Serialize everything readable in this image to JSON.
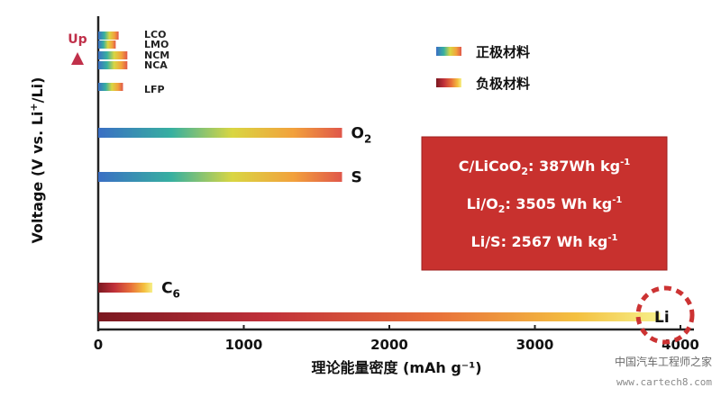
{
  "chart_data": {
    "type": "bar",
    "orientation": "horizontal",
    "xlabel": "理论能量密度 (mAh g⁻¹)",
    "ylabel_parts": [
      "Voltage (V vs. Li",
      "+",
      "/Li)"
    ],
    "up_label": "Up",
    "xlim": [
      0,
      4000
    ],
    "xticks": [
      0,
      1000,
      2000,
      3000,
      4000
    ],
    "bars": [
      {
        "label": "LCO",
        "value": 140,
        "kind": "cathode"
      },
      {
        "label": "LMO",
        "value": 120,
        "kind": "cathode"
      },
      {
        "label": "NCM",
        "value": 200,
        "kind": "cathode"
      },
      {
        "label": "NCA",
        "value": 200,
        "kind": "cathode"
      },
      {
        "label": "LFP",
        "value": 170,
        "kind": "cathode"
      },
      {
        "label": "O2",
        "label_main": "O",
        "label_sub": "2",
        "value": 1675,
        "kind": "cathode"
      },
      {
        "label": "S",
        "label_main": "S",
        "label_sub": "",
        "value": 1675,
        "kind": "cathode"
      },
      {
        "label": "C6",
        "label_main": "C",
        "label_sub": "6",
        "value": 372,
        "kind": "anode"
      },
      {
        "label": "Li",
        "label_main": "Li",
        "label_sub": "",
        "value": 3860,
        "kind": "anode"
      }
    ],
    "legend": [
      {
        "label": "正极材料",
        "kind": "cathode"
      },
      {
        "label": "负极材料",
        "kind": "anode"
      }
    ],
    "annotation_box": {
      "lines": [
        {
          "pre": "C/LiCoO",
          "sub": "2",
          "post": ": 387Wh kg",
          "sup": "-1"
        },
        {
          "pre": "Li/O",
          "sub": "2",
          "post": ": 3505 Wh kg",
          "sup": "-1"
        },
        {
          "pre": "Li/S: 2567 Wh kg",
          "sub": "",
          "post": "",
          "sup": "-1"
        }
      ]
    },
    "colors": {
      "cathode_gradient": [
        "#3a6fc4",
        "#37b0a0",
        "#d9d642",
        "#f2a13c",
        "#e0574a"
      ],
      "anode_gradient": [
        "#7a1820",
        "#c0303a",
        "#e8703a",
        "#f4c040",
        "#f6f08a"
      ],
      "box_fill": "#c8312e",
      "highlight_ring": "#cc3333",
      "axis": "#222222"
    }
  },
  "watermark": {
    "title": "中国汽车工程师之家",
    "url": "www.cartech8.com"
  }
}
